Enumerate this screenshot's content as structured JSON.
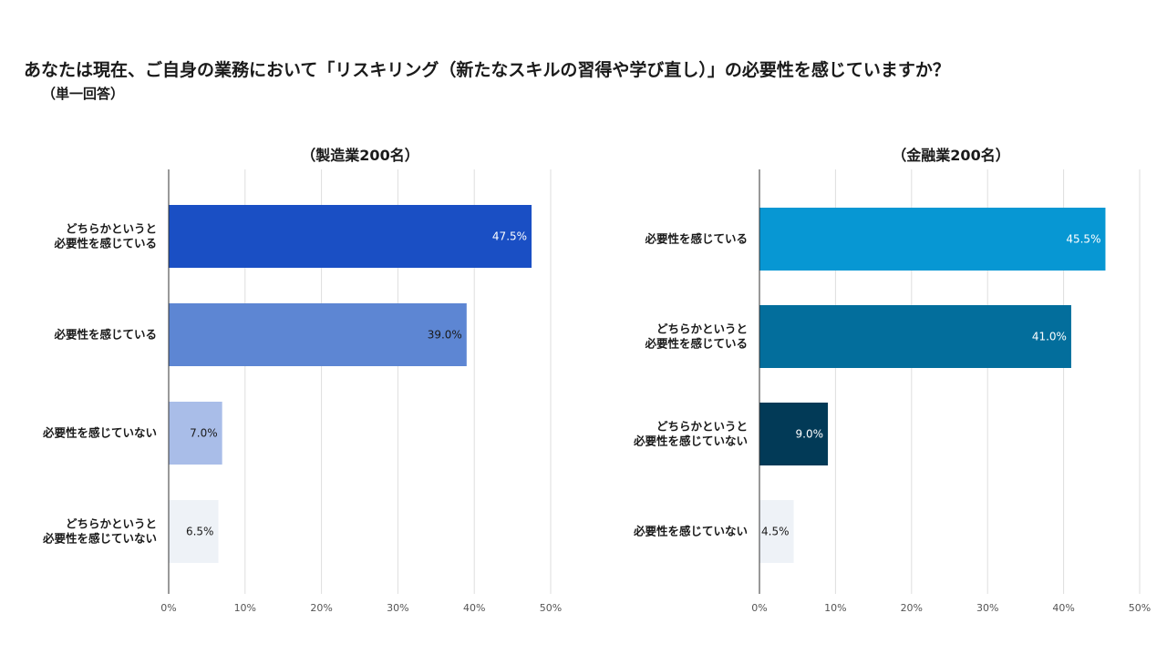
{
  "title": "あなたは現在、ご自身の業務において「リスキリング（新たなスキルの習得や学び直し）」の必要性を感じていますか？",
  "subtitle": "（単一回答）",
  "chart_data": [
    {
      "type": "bar",
      "orientation": "horizontal",
      "title": "（製造業200名）",
      "categories": [
        [
          "どちらかというと",
          "必要性を感じている"
        ],
        [
          "必要性を感じている"
        ],
        [
          "必要性を感じていない"
        ],
        [
          "どちらかというと",
          "必要性を感じていない"
        ]
      ],
      "values": [
        47.5,
        39.0,
        7.0,
        6.5
      ],
      "value_labels": [
        "47.5%",
        "39.0%",
        "7.0%",
        "6.5%"
      ],
      "colors": [
        "#1a4fc4",
        "#5d86d3",
        "#a9bde8",
        "#eef2f7"
      ],
      "label_colors": [
        "#ffffff",
        "#1a1a1a",
        "#1a1a1a",
        "#1a1a1a"
      ],
      "xlim": [
        0,
        50
      ],
      "xticks": [
        "0%",
        "10%",
        "20%",
        "30%",
        "40%",
        "50%"
      ],
      "grid": true
    },
    {
      "type": "bar",
      "orientation": "horizontal",
      "title": "（金融業200名）",
      "categories": [
        [
          "必要性を感じている"
        ],
        [
          "どちらかというと",
          "必要性を感じている"
        ],
        [
          "どちらかというと",
          "必要性を感じていない"
        ],
        [
          "必要性を感じていない"
        ]
      ],
      "values": [
        45.5,
        41.0,
        9.0,
        4.5
      ],
      "value_labels": [
        "45.5%",
        "41.0%",
        "9.0%",
        "4.5%"
      ],
      "colors": [
        "#0797d3",
        "#036e9c",
        "#023a57",
        "#eef2f7"
      ],
      "label_colors": [
        "#ffffff",
        "#ffffff",
        "#ffffff",
        "#1a1a1a"
      ],
      "xlim": [
        0,
        50
      ],
      "xticks": [
        "0%",
        "10%",
        "20%",
        "30%",
        "40%",
        "50%"
      ],
      "grid": true
    }
  ]
}
